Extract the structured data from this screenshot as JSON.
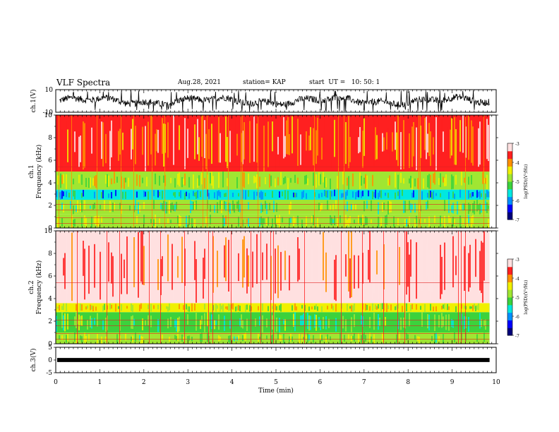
{
  "header": {
    "title": "VLF Spectra",
    "date": "Aug.28, 2021",
    "station": "station= KAP",
    "start": "start  UT =   10: 50: 1"
  },
  "colors": {
    "colormap": [
      "#00007a",
      "#0000ff",
      "#0090ff",
      "#00e8e0",
      "#3cd23c",
      "#a0e632",
      "#f0f000",
      "#ff9000",
      "#ff2020",
      "#ffe0e0"
    ],
    "trace": "#000000"
  },
  "chart_data": [
    {
      "type": "line",
      "title": "",
      "ylabel": "ch.1(V)",
      "xlim": [
        0,
        10
      ],
      "ylim": [
        -10,
        10
      ],
      "yticks": [
        "10",
        "-10"
      ],
      "note": "noisy waveform trace spanning roughly -8 to +8 V with dense spikes",
      "x_end": 9.85
    },
    {
      "type": "heatmap",
      "ylabel_lines": [
        "ch.1",
        "Frequency (kHz)"
      ],
      "xlim": [
        0,
        10
      ],
      "ylim": [
        0,
        10
      ],
      "yticks": [
        "0",
        "2",
        "4",
        "6",
        "8",
        "10"
      ],
      "x_end": 9.85,
      "colorbar": {
        "label": "log(PSD)(V²/Hz)",
        "range": [
          -7,
          -3
        ],
        "ticks": [
          "-3",
          "-4",
          "-5",
          "-6",
          "-7"
        ]
      },
      "bands": [
        {
          "from": 0,
          "to": 1.2,
          "level": -4.8
        },
        {
          "from": 1.2,
          "to": 2.5,
          "level": -5.0
        },
        {
          "from": 2.5,
          "to": 3.4,
          "level": -5.8
        },
        {
          "from": 3.4,
          "to": 5.0,
          "level": -4.6
        },
        {
          "from": 5.0,
          "to": 10,
          "level": -3.6
        }
      ]
    },
    {
      "type": "heatmap",
      "ylabel_lines": [
        "ch.2",
        "Frequency (kHz)"
      ],
      "xlim": [
        0,
        10
      ],
      "ylim": [
        0,
        10
      ],
      "yticks": [
        "0",
        "2",
        "4",
        "6",
        "8",
        "10"
      ],
      "x_end": 9.85,
      "colorbar": {
        "label": "log(PSD)(V²/Hz)",
        "range": [
          -7,
          -3
        ],
        "ticks": [
          "-3",
          "-4",
          "-5",
          "-6",
          "-7"
        ]
      },
      "bands": [
        {
          "from": 0,
          "to": 1.0,
          "level": -4.8
        },
        {
          "from": 1.0,
          "to": 2.8,
          "level": -5.1
        },
        {
          "from": 2.8,
          "to": 3.6,
          "level": -4.5
        },
        {
          "from": 3.6,
          "to": 10,
          "level": -3.2
        }
      ]
    },
    {
      "type": "line",
      "ylabel": "ch.3(V)",
      "xlim": [
        0,
        10
      ],
      "ylim": [
        -5,
        5
      ],
      "yticks": [
        "5",
        "0",
        "-5"
      ],
      "note": "thick near-constant trace at about 0 V",
      "x_end": 9.85
    }
  ],
  "xaxis": {
    "label": "Time (min)",
    "ticks": [
      "0",
      "1",
      "2",
      "3",
      "4",
      "5",
      "6",
      "7",
      "8",
      "9",
      "10"
    ]
  }
}
